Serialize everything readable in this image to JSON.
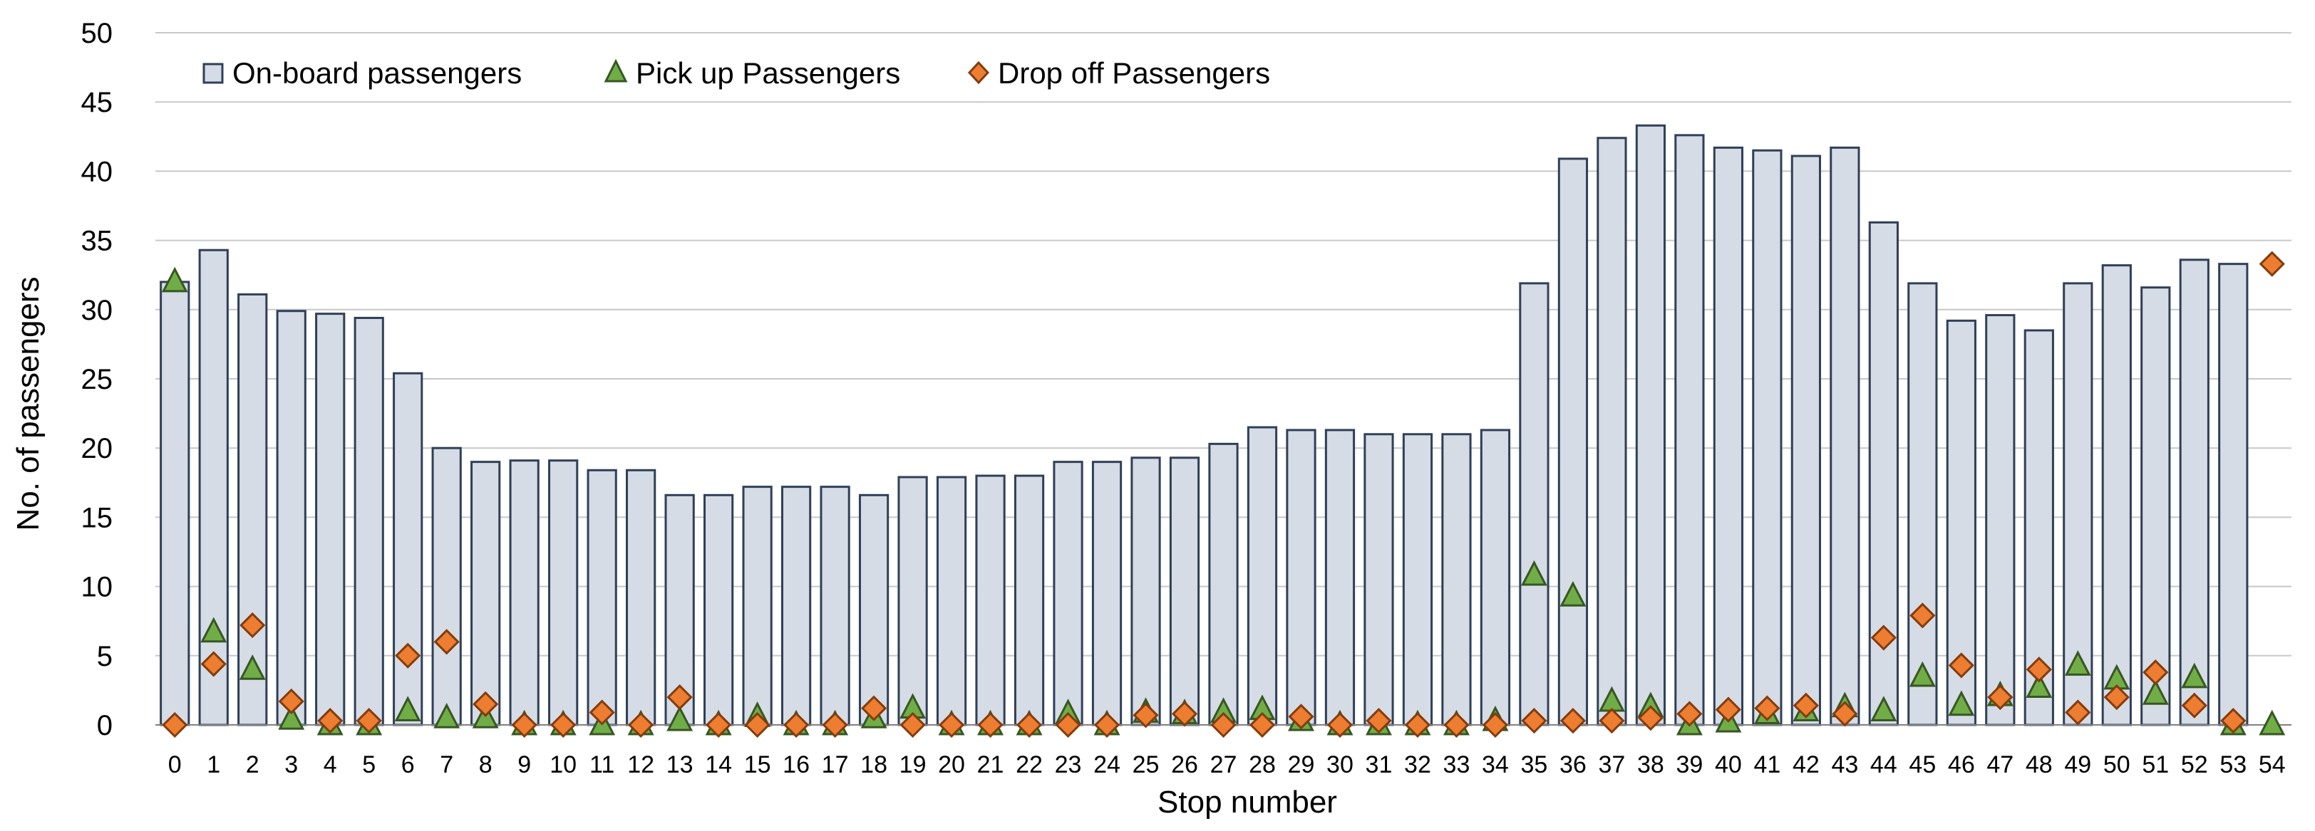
{
  "chart_data": {
    "type": "bar",
    "title": "",
    "xlabel": "Stop number",
    "ylabel": "No. of passengers",
    "ylim": [
      0,
      50
    ],
    "yticks": [
      0,
      5,
      10,
      15,
      20,
      25,
      30,
      35,
      40,
      45,
      50
    ],
    "grid": true,
    "legend_position": "top-left",
    "categories": [
      "0",
      "1",
      "2",
      "3",
      "4",
      "5",
      "6",
      "7",
      "8",
      "9",
      "10",
      "11",
      "12",
      "13",
      "14",
      "15",
      "16",
      "17",
      "18",
      "19",
      "20",
      "21",
      "22",
      "23",
      "24",
      "25",
      "26",
      "27",
      "28",
      "29",
      "30",
      "31",
      "32",
      "33",
      "34",
      "35",
      "36",
      "37",
      "38",
      "39",
      "40",
      "41",
      "42",
      "43",
      "44",
      "45",
      "46",
      "47",
      "48",
      "49",
      "50",
      "51",
      "52",
      "53",
      "54"
    ],
    "series": [
      {
        "name": "On-board passengers",
        "kind": "bar",
        "color": "#d6dce5",
        "edge_color": "#2f4058",
        "values": [
          32,
          34.3,
          31.1,
          29.9,
          29.7,
          29.4,
          25.4,
          20,
          19,
          19.1,
          19.1,
          18.4,
          18.4,
          16.6,
          16.6,
          17.2,
          17.2,
          17.2,
          16.6,
          17.9,
          17.9,
          18,
          18,
          19,
          19,
          19.3,
          19.3,
          20.3,
          21.5,
          21.3,
          21.3,
          21,
          21,
          21,
          21.3,
          31.9,
          40.9,
          42.4,
          43.3,
          42.6,
          41.7,
          41.5,
          41.1,
          41.7,
          36.3,
          31.9,
          29.2,
          29.6,
          28.5,
          31.9,
          33.2,
          31.6,
          33.6,
          33.3,
          null
        ]
      },
      {
        "name": "Pick up Passengers",
        "kind": "marker",
        "marker": "triangle",
        "color": "#70ad47",
        "edge_color": "#375623",
        "values": [
          32,
          6.7,
          4,
          0.4,
          0,
          0,
          1,
          0.5,
          0.5,
          0,
          0,
          0,
          0,
          0.3,
          0,
          0.6,
          0,
          0,
          0.5,
          1.2,
          0,
          0,
          0,
          0.8,
          0,
          0.9,
          0.8,
          0.9,
          1.1,
          0.3,
          0,
          0,
          0,
          0,
          0.3,
          10.8,
          9.3,
          1.7,
          1.3,
          0,
          0.2,
          0.8,
          1,
          1.3,
          1,
          3.5,
          1.4,
          2.1,
          2.7,
          4.3,
          3.3,
          2.2,
          3.4,
          0,
          0
        ]
      },
      {
        "name": "Drop off Passengers",
        "kind": "marker",
        "marker": "diamond",
        "color": "#ed7d31",
        "edge_color": "#843c0c",
        "values": [
          0,
          4.4,
          7.2,
          1.7,
          0.3,
          0.3,
          5,
          6,
          1.5,
          0,
          0,
          0.9,
          0,
          2,
          0,
          0,
          0,
          0,
          1.2,
          0,
          0,
          0,
          0,
          0,
          0,
          0.7,
          0.8,
          0,
          0,
          0.6,
          0,
          0.3,
          0,
          0,
          0,
          0.3,
          0.3,
          0.3,
          0.5,
          0.8,
          1.1,
          1.2,
          1.4,
          0.8,
          6.3,
          7.9,
          4.3,
          2,
          4,
          0.9,
          2,
          3.8,
          1.4,
          0.3,
          33.3
        ]
      }
    ]
  }
}
